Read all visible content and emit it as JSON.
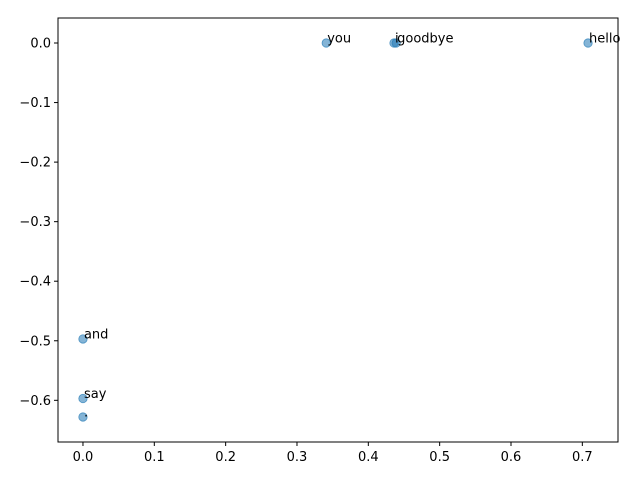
{
  "chart_data": {
    "type": "scatter",
    "title": "",
    "xlabel": "",
    "ylabel": "",
    "xlim": [
      -0.035,
      0.75
    ],
    "ylim": [
      -0.67,
      0.042
    ],
    "xticks": [
      0.0,
      0.1,
      0.2,
      0.3,
      0.4,
      0.5,
      0.6,
      0.7
    ],
    "xtick_labels": [
      "0.0",
      "0.1",
      "0.2",
      "0.3",
      "0.4",
      "0.5",
      "0.6",
      "0.7"
    ],
    "yticks": [
      0.0,
      -0.1,
      -0.2,
      -0.3,
      -0.4,
      -0.5,
      -0.6
    ],
    "ytick_labels": [
      "0.0",
      "−0.1",
      "−0.2",
      "−0.3",
      "−0.4",
      "−0.5",
      "−0.6"
    ],
    "grid": false,
    "legend": false,
    "point_color": "#1f77b4",
    "point_alpha": 0.55,
    "points": [
      {
        "label": "you",
        "x": 0.341,
        "y": 0.0
      },
      {
        "label": "i",
        "x": 0.436,
        "y": 0.0
      },
      {
        "label": "goodbye",
        "x": 0.439,
        "y": 0.0
      },
      {
        "label": "hello",
        "x": 0.708,
        "y": 0.0
      },
      {
        "label": "and",
        "x": 0.0,
        "y": -0.497
      },
      {
        "label": "say",
        "x": 0.0,
        "y": -0.597
      },
      {
        "label": ".",
        "x": 0.0,
        "y": -0.628
      }
    ]
  }
}
